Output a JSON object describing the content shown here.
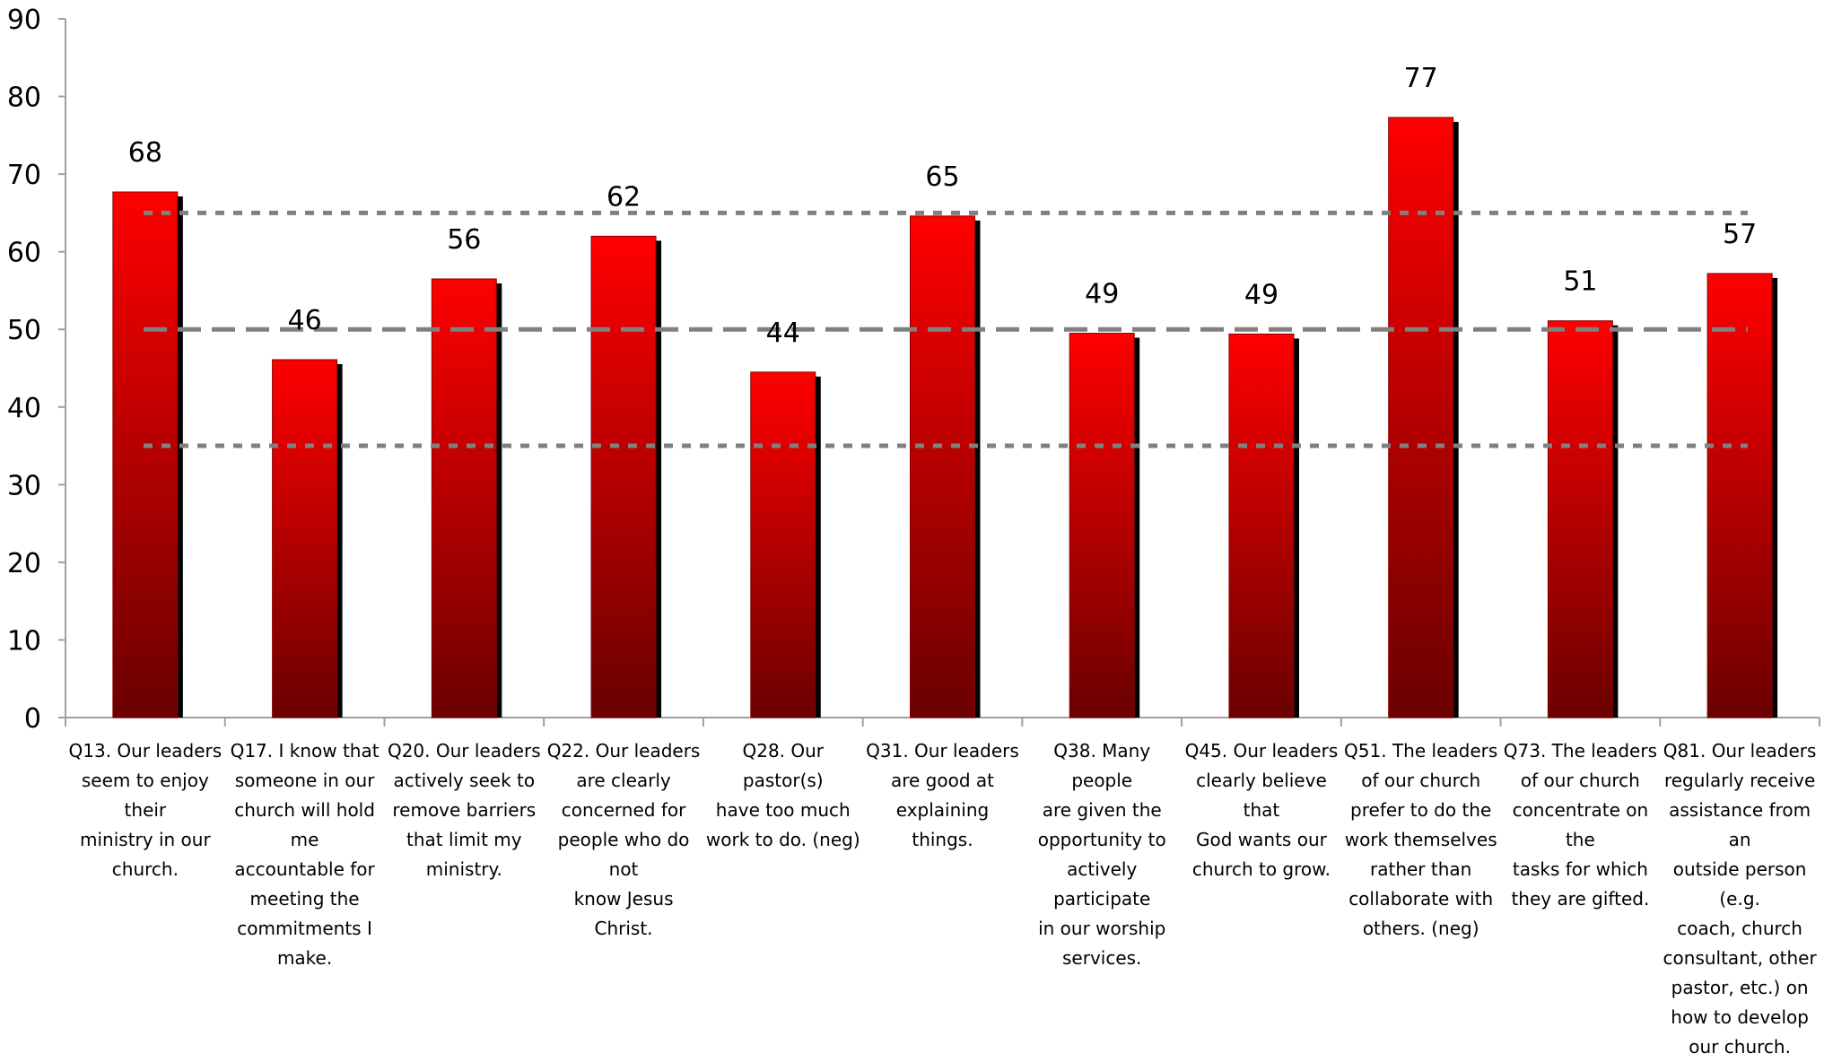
{
  "chart_data": {
    "type": "bar",
    "categories": [
      "Q13. Our leaders seem to enjoy their ministry in our church.",
      "Q17. I know that someone in our church will hold me accountable for meeting the commitments I make.",
      "Q20. Our leaders actively seek to remove barriers that limit my ministry.",
      "Q22. Our leaders are clearly concerned for people who do not know Jesus Christ.",
      "Q28. Our pastor(s) have too much work to do. (neg)",
      "Q31. Our leaders are good at explaining things.",
      "Q38. Many people are given the opportunity to actively participate in our worship services.",
      "Q45. Our leaders clearly believe that God wants our church to grow.",
      "Q51. The leaders of our church prefer to do the work themselves rather than collaborate with others. (neg)",
      "Q73. The leaders of our church concentrate on the tasks for which they are gifted.",
      "Q81. Our leaders regularly receive assistance from an outside person (e.g. coach, church consultant, other pastor, etc.) on how to develop our church."
    ],
    "category_lines": [
      [
        "Q13. Our leaders",
        "seem to enjoy their",
        "ministry in our",
        "church."
      ],
      [
        "Q17. I know that",
        "someone in our",
        "church will hold me",
        "accountable for",
        "meeting the",
        "commitments I",
        "make."
      ],
      [
        "Q20. Our leaders",
        "actively seek to",
        "remove barriers",
        "that limit my",
        "ministry."
      ],
      [
        "Q22. Our leaders",
        "are clearly",
        "concerned for",
        "people who do not",
        "know Jesus Christ."
      ],
      [
        "Q28. Our pastor(s)",
        "have too much",
        "work to do. (neg)"
      ],
      [
        "Q31. Our leaders",
        "are good at",
        "explaining things."
      ],
      [
        "Q38. Many people",
        "are given the",
        "opportunity to",
        "actively participate",
        "in our worship",
        "services."
      ],
      [
        "Q45. Our leaders",
        "clearly believe that",
        "God wants our",
        "church to grow."
      ],
      [
        "Q51. The leaders",
        "of our church",
        "prefer to do the",
        "work themselves",
        "rather than",
        "collaborate with",
        "others. (neg)"
      ],
      [
        "Q73. The leaders",
        "of our church",
        "concentrate on the",
        "tasks for which",
        "they are gifted."
      ],
      [
        "Q81. Our leaders",
        "regularly receive",
        "assistance from an",
        "outside person (e.g.",
        "coach, church",
        "consultant, other",
        "pastor, etc.) on",
        "how to develop",
        "our church."
      ]
    ],
    "values": [
      67.7,
      46.1,
      56.5,
      62.0,
      44.5,
      64.6,
      49.5,
      49.4,
      77.3,
      51.1,
      57.2
    ],
    "data_labels": [
      "68",
      "46",
      "56",
      "62",
      "44",
      "65",
      "49",
      "49",
      "77",
      "51",
      "57"
    ],
    "ylim": [
      0,
      90
    ],
    "yticks": [
      "0",
      "10",
      "20",
      "30",
      "40",
      "50",
      "60",
      "70",
      "80",
      "90"
    ],
    "reference_lines": [
      {
        "value": 65,
        "style": "dotted"
      },
      {
        "value": 50,
        "style": "dashed"
      },
      {
        "value": 35,
        "style": "dotted"
      }
    ],
    "colors": {
      "bar_top": "#ff0000",
      "bar_bottom": "#6a0000",
      "bar_shadow": "#000000",
      "reference_line": "#808080",
      "axis": "#a0a0a0"
    },
    "grid": false,
    "title": "",
    "xlabel": "",
    "ylabel": ""
  }
}
